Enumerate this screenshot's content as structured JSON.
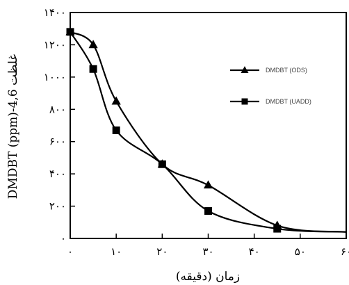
{
  "chart_data": {
    "type": "line",
    "xlabel": "زمان (دقیقه)",
    "ylabel": "غلظت 4,6-DMDBT (ppm)",
    "xlim": [
      0,
      60
    ],
    "ylim": [
      0,
      1400
    ],
    "x_ticks": [
      0,
      10,
      20,
      30,
      40,
      50,
      60
    ],
    "y_ticks": [
      0,
      200,
      400,
      600,
      800,
      1000,
      1200,
      1400
    ],
    "x_tick_labels": [
      "۰",
      "۱۰",
      "۲۰",
      "۳۰",
      "۴۰",
      "۵۰",
      "۶۰"
    ],
    "y_tick_labels": [
      "۰",
      "۲۰۰",
      "۴۰۰",
      "۶۰۰",
      "۸۰۰",
      "۱۰۰۰",
      "۱۲۰۰",
      "۱۴۰۰"
    ],
    "grid": false,
    "legend_position": "right",
    "series": [
      {
        "name": "DMDBT (ODS)",
        "marker": "triangle",
        "x": [
          0,
          5,
          10,
          20,
          30,
          45,
          60
        ],
        "y": [
          1280,
          1200,
          850,
          460,
          330,
          80,
          40
        ]
      },
      {
        "name": "DMDBT (UADD)",
        "marker": "square",
        "x": [
          0,
          5,
          10,
          20,
          30,
          45,
          60
        ],
        "y": [
          1280,
          1050,
          670,
          460,
          170,
          60,
          40
        ]
      }
    ]
  }
}
